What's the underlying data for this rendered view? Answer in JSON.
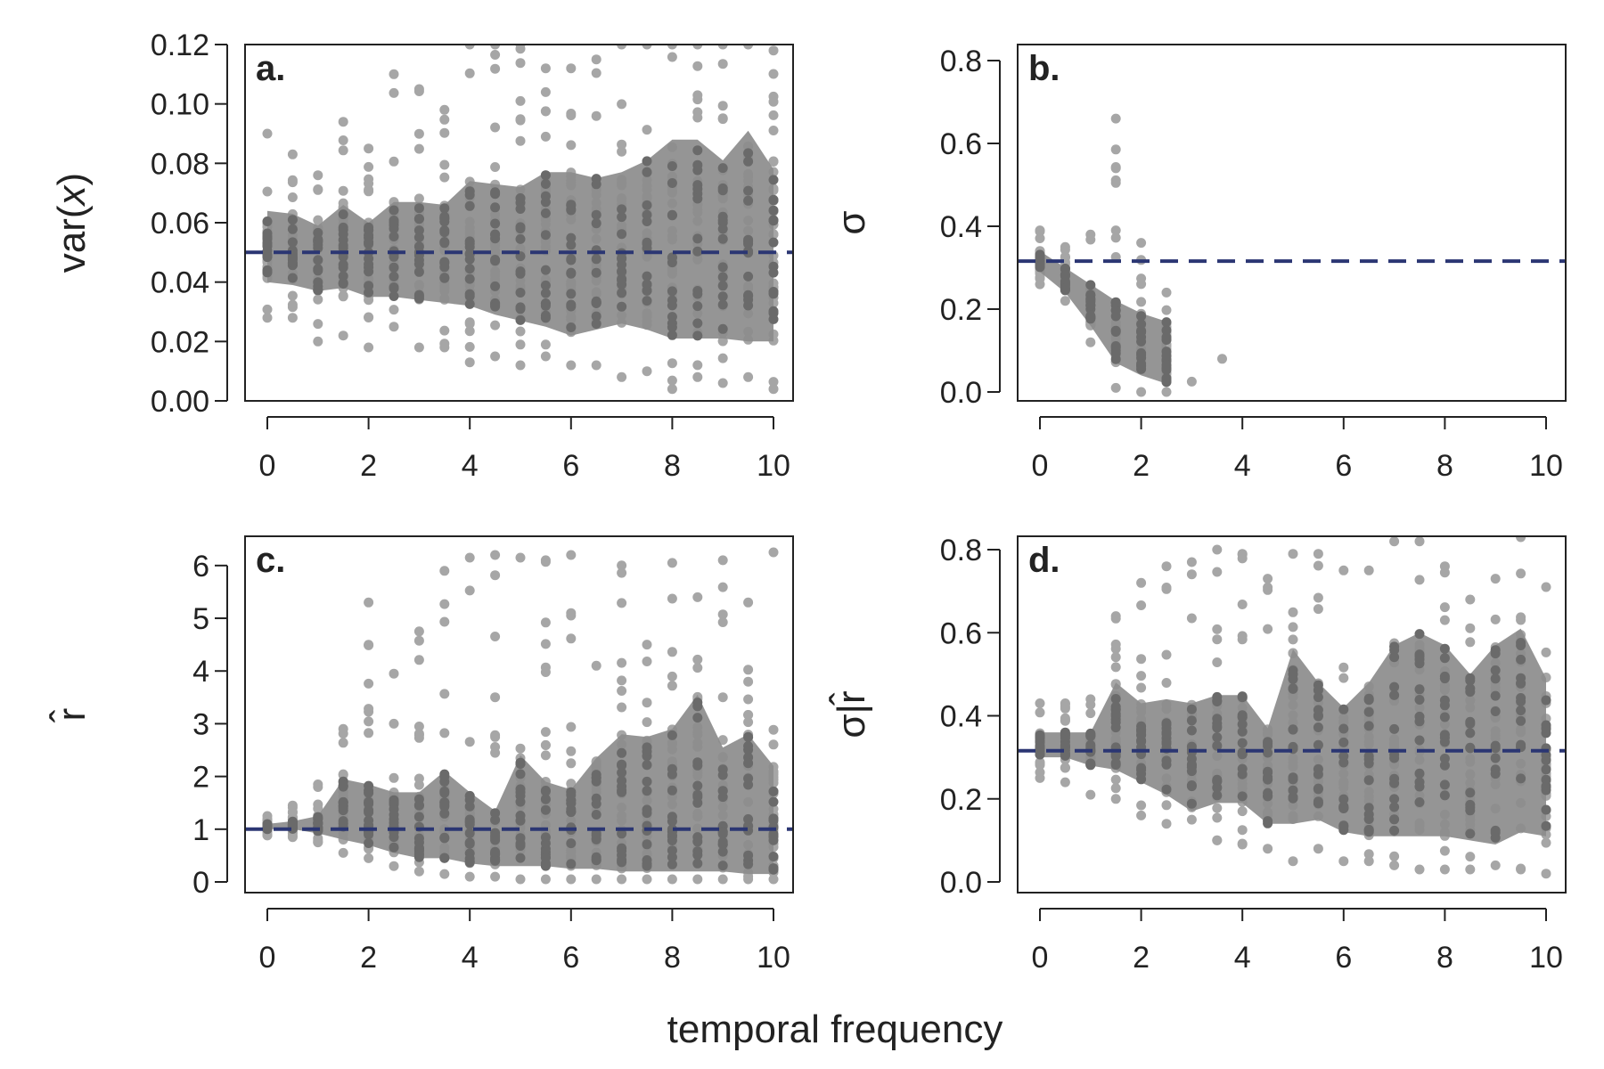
{
  "figure": {
    "xlabel": "temporal frequency",
    "x_ticks": [
      0,
      2,
      4,
      6,
      8,
      10
    ],
    "band_color": "#8c8c8c",
    "point_color": "#a6a6a6",
    "dark_point_color": "#6a6a6a",
    "ref_line_color": "#2b3673"
  },
  "chart_data": [
    {
      "panel": "a.",
      "type": "scatter",
      "ylabel": "var(x)",
      "ylim": [
        0,
        0.12
      ],
      "y_ticks": [
        "0.00",
        "0.02",
        "0.04",
        "0.06",
        "0.08",
        "0.10",
        "0.12"
      ],
      "reference_line": 0.05,
      "x": [
        0,
        0.5,
        1,
        1.5,
        2,
        2.5,
        3,
        3.5,
        4,
        4.5,
        5,
        5.5,
        6,
        6.5,
        7,
        7.5,
        8,
        8.5,
        9,
        9.5,
        10
      ],
      "band_upper": [
        0.064,
        0.063,
        0.059,
        0.066,
        0.06,
        0.067,
        0.067,
        0.066,
        0.074,
        0.073,
        0.072,
        0.077,
        0.077,
        0.075,
        0.077,
        0.081,
        0.088,
        0.088,
        0.081,
        0.091,
        0.078
      ],
      "band_lower": [
        0.04,
        0.039,
        0.037,
        0.038,
        0.035,
        0.035,
        0.034,
        0.033,
        0.032,
        0.029,
        0.027,
        0.025,
        0.022,
        0.024,
        0.026,
        0.024,
        0.021,
        0.021,
        0.021,
        0.02,
        0.02
      ],
      "point_min": [
        0.028,
        0.028,
        0.02,
        0.022,
        0.018,
        0.025,
        0.018,
        0.018,
        0.013,
        0.015,
        0.012,
        0.015,
        0.012,
        0.012,
        0.008,
        0.01,
        0.004,
        0.008,
        0.006,
        0.008,
        0.004
      ],
      "point_max": [
        0.09,
        0.083,
        0.076,
        0.094,
        0.085,
        0.11,
        0.105,
        0.098,
        0.12,
        0.12,
        0.12,
        0.112,
        0.112,
        0.115,
        0.12,
        0.12,
        0.12,
        0.12,
        0.12,
        0.12,
        0.118
      ]
    },
    {
      "panel": "b.",
      "type": "scatter",
      "ylabel": "σ",
      "ylim": [
        0,
        0.8
      ],
      "y_ticks": [
        "0.0",
        "0.2",
        "0.4",
        "0.6",
        "0.8"
      ],
      "reference_line": 0.316,
      "x": [
        0,
        0.5,
        1,
        1.5,
        2,
        2.5
      ],
      "band_upper": [
        0.34,
        0.3,
        0.26,
        0.22,
        0.19,
        0.17
      ],
      "band_lower": [
        0.29,
        0.24,
        0.16,
        0.07,
        0.04,
        0.02
      ],
      "point_min": [
        0.26,
        0.22,
        0.12,
        0.01,
        0.0,
        0.0
      ],
      "point_max": [
        0.39,
        0.35,
        0.38,
        0.66,
        0.36,
        0.24
      ],
      "extra_points": [
        [
          1.5,
          0.54
        ],
        [
          1.5,
          0.39
        ],
        [
          3.0,
          0.025
        ],
        [
          3.6,
          0.08
        ]
      ]
    },
    {
      "panel": "c.",
      "type": "scatter",
      "ylabel": "r̂",
      "ylim": [
        0,
        6.2
      ],
      "y_ticks": [
        "0",
        "1",
        "2",
        "3",
        "4",
        "5",
        "6"
      ],
      "reference_line": 1,
      "x": [
        0,
        0.5,
        1,
        1.5,
        2,
        2.5,
        3,
        3.5,
        4,
        4.5,
        5,
        5.5,
        6,
        6.5,
        7,
        7.5,
        8,
        8.5,
        9,
        9.5,
        10
      ],
      "band_upper": [
        1.1,
        1.15,
        1.25,
        1.95,
        1.85,
        1.7,
        1.7,
        2.1,
        1.7,
        1.35,
        2.4,
        1.9,
        1.75,
        2.35,
        2.8,
        2.75,
        2.9,
        3.55,
        2.55,
        2.8,
        2.2
      ],
      "band_lower": [
        1.0,
        1.0,
        0.92,
        0.8,
        0.7,
        0.55,
        0.45,
        0.45,
        0.35,
        0.3,
        0.3,
        0.3,
        0.25,
        0.25,
        0.2,
        0.2,
        0.2,
        0.2,
        0.2,
        0.15,
        0.15
      ],
      "point_min": [
        0.88,
        0.85,
        0.75,
        0.55,
        0.45,
        0.3,
        0.2,
        0.15,
        0.1,
        0.1,
        0.05,
        0.05,
        0.05,
        0.05,
        0.05,
        0.05,
        0.05,
        0.05,
        0.05,
        0.05,
        0.05
      ],
      "point_max": [
        1.25,
        1.45,
        1.85,
        2.9,
        5.3,
        3.95,
        4.75,
        5.9,
        6.15,
        6.2,
        6.15,
        6.1,
        6.2,
        4.1,
        6.0,
        4.5,
        6.05,
        5.4,
        6.1,
        5.3,
        6.25
      ]
    },
    {
      "panel": "d.",
      "type": "scatter",
      "ylabel": "σ|r̂",
      "ylim": [
        0,
        0.8
      ],
      "y_ticks": [
        "0.0",
        "0.2",
        "0.4",
        "0.6",
        "0.8"
      ],
      "reference_line": 0.316,
      "x": [
        0,
        0.5,
        1,
        1.5,
        2,
        2.5,
        3,
        3.5,
        4,
        4.5,
        5,
        5.5,
        6,
        6.5,
        7,
        7.5,
        8,
        8.5,
        9,
        9.5,
        10
      ],
      "band_upper": [
        0.36,
        0.36,
        0.36,
        0.48,
        0.43,
        0.44,
        0.43,
        0.45,
        0.45,
        0.37,
        0.56,
        0.48,
        0.42,
        0.48,
        0.57,
        0.6,
        0.57,
        0.5,
        0.57,
        0.61,
        0.49
      ],
      "band_lower": [
        0.3,
        0.3,
        0.28,
        0.27,
        0.24,
        0.21,
        0.17,
        0.19,
        0.19,
        0.14,
        0.14,
        0.15,
        0.12,
        0.11,
        0.11,
        0.11,
        0.11,
        0.1,
        0.09,
        0.12,
        0.11
      ],
      "point_min": [
        0.25,
        0.24,
        0.21,
        0.2,
        0.16,
        0.14,
        0.15,
        0.1,
        0.09,
        0.08,
        0.05,
        0.08,
        0.05,
        0.05,
        0.04,
        0.03,
        0.03,
        0.03,
        0.04,
        0.03,
        0.02
      ],
      "point_max": [
        0.43,
        0.43,
        0.44,
        0.64,
        0.72,
        0.76,
        0.77,
        0.8,
        0.79,
        0.73,
        0.79,
        0.79,
        0.75,
        0.75,
        0.82,
        0.82,
        0.76,
        0.68,
        0.73,
        0.83,
        0.71
      ]
    }
  ]
}
